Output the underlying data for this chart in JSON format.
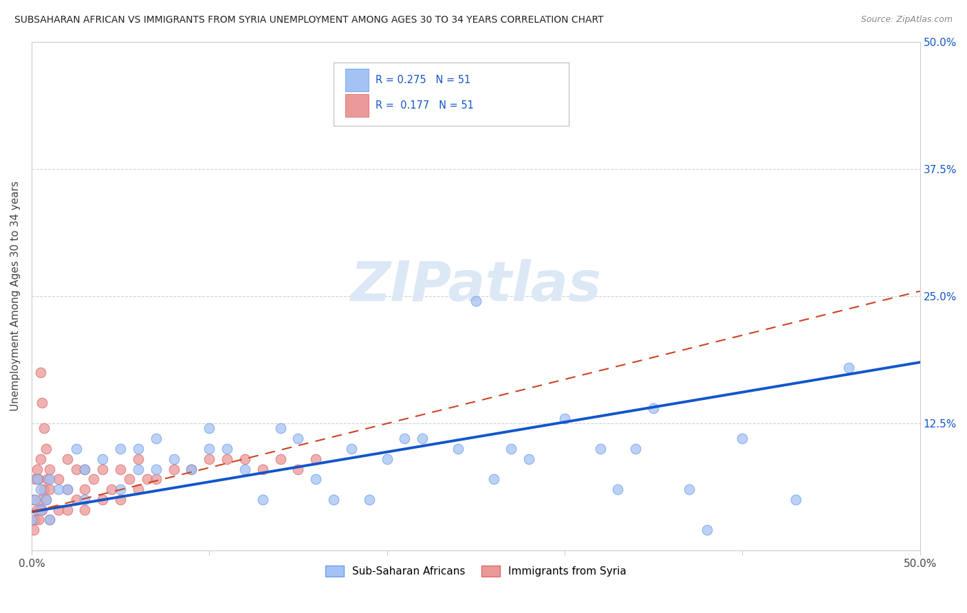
{
  "title": "SUBSAHARAN AFRICAN VS IMMIGRANTS FROM SYRIA UNEMPLOYMENT AMONG AGES 30 TO 34 YEARS CORRELATION CHART",
  "source": "Source: ZipAtlas.com",
  "ylabel": "Unemployment Among Ages 30 to 34 years",
  "xlim": [
    0.0,
    0.5
  ],
  "ylim": [
    0.0,
    0.5
  ],
  "color_blue_fill": "#a4c2f4",
  "color_blue_edge": "#6d9eeb",
  "color_pink_fill": "#ea9999",
  "color_pink_edge": "#e06666",
  "color_blue_line": "#1155cc",
  "color_pink_line": "#cc4125",
  "color_right_labels": "#1155cc",
  "blue_scatter_x": [
    0.0,
    0.002,
    0.003,
    0.005,
    0.005,
    0.008,
    0.01,
    0.01,
    0.015,
    0.02,
    0.025,
    0.03,
    0.03,
    0.04,
    0.05,
    0.05,
    0.06,
    0.06,
    0.07,
    0.07,
    0.08,
    0.09,
    0.1,
    0.1,
    0.11,
    0.12,
    0.13,
    0.14,
    0.15,
    0.16,
    0.17,
    0.18,
    0.19,
    0.2,
    0.21,
    0.22,
    0.24,
    0.25,
    0.26,
    0.27,
    0.28,
    0.3,
    0.32,
    0.33,
    0.34,
    0.35,
    0.37,
    0.38,
    0.4,
    0.43,
    0.46
  ],
  "blue_scatter_y": [
    0.03,
    0.05,
    0.07,
    0.04,
    0.06,
    0.05,
    0.03,
    0.07,
    0.06,
    0.06,
    0.1,
    0.05,
    0.08,
    0.09,
    0.06,
    0.1,
    0.08,
    0.1,
    0.08,
    0.11,
    0.09,
    0.08,
    0.1,
    0.12,
    0.1,
    0.08,
    0.05,
    0.12,
    0.11,
    0.07,
    0.05,
    0.1,
    0.05,
    0.09,
    0.11,
    0.11,
    0.1,
    0.245,
    0.07,
    0.1,
    0.09,
    0.13,
    0.1,
    0.06,
    0.1,
    0.14,
    0.06,
    0.02,
    0.11,
    0.05,
    0.18
  ],
  "pink_scatter_x": [
    0.001,
    0.001,
    0.002,
    0.002,
    0.003,
    0.003,
    0.004,
    0.004,
    0.005,
    0.005,
    0.006,
    0.007,
    0.008,
    0.009,
    0.01,
    0.01,
    0.01,
    0.015,
    0.015,
    0.02,
    0.02,
    0.02,
    0.025,
    0.025,
    0.03,
    0.03,
    0.03,
    0.035,
    0.04,
    0.04,
    0.045,
    0.05,
    0.05,
    0.055,
    0.06,
    0.06,
    0.065,
    0.07,
    0.08,
    0.09,
    0.1,
    0.11,
    0.12,
    0.13,
    0.14,
    0.15,
    0.16,
    0.005,
    0.006,
    0.007,
    0.008
  ],
  "pink_scatter_y": [
    0.02,
    0.05,
    0.03,
    0.07,
    0.04,
    0.08,
    0.03,
    0.07,
    0.05,
    0.09,
    0.04,
    0.06,
    0.05,
    0.07,
    0.03,
    0.06,
    0.08,
    0.04,
    0.07,
    0.04,
    0.06,
    0.09,
    0.05,
    0.08,
    0.04,
    0.06,
    0.08,
    0.07,
    0.05,
    0.08,
    0.06,
    0.05,
    0.08,
    0.07,
    0.06,
    0.09,
    0.07,
    0.07,
    0.08,
    0.08,
    0.09,
    0.09,
    0.09,
    0.08,
    0.09,
    0.08,
    0.09,
    0.175,
    0.145,
    0.12,
    0.1
  ],
  "blue_trend_x": [
    0.0,
    0.5
  ],
  "blue_trend_y": [
    0.038,
    0.185
  ],
  "pink_trend_x": [
    0.0,
    0.5
  ],
  "pink_trend_y": [
    0.038,
    0.255
  ]
}
